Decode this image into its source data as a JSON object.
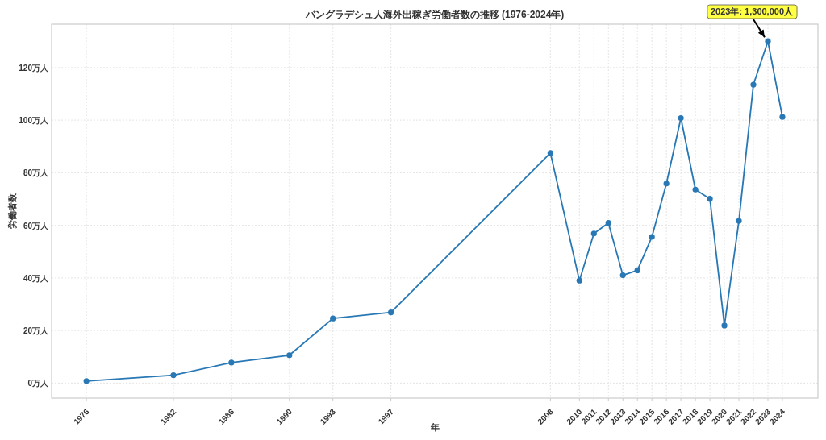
{
  "chart_data": {
    "type": "line",
    "title": "バングラデシュ人海外出稼ぎ労働者数の推移 (1976-2024年)",
    "xlabel": "年",
    "ylabel": "労働者数",
    "x": [
      1976,
      1982,
      1986,
      1990,
      1993,
      1997,
      2008,
      2010,
      2011,
      2012,
      2013,
      2014,
      2015,
      2016,
      2017,
      2018,
      2019,
      2020,
      2021,
      2022,
      2023,
      2024
    ],
    "series": [
      {
        "color": "#2878b5",
        "values": [
          0.8,
          3.0,
          7.8,
          10.6,
          24.6,
          26.9,
          87.5,
          39.0,
          56.9,
          60.9,
          41.0,
          42.9,
          55.6,
          75.9,
          100.8,
          73.6,
          70.1,
          21.9,
          61.7,
          113.5,
          130.0,
          101.2
        ]
      }
    ],
    "xlim": [
      1973.6,
      2026.45
    ],
    "ylim": [
      -5.7,
      136.5
    ],
    "xticks": [
      1976,
      1982,
      1986,
      1990,
      1993,
      1997,
      2008,
      2010,
      2011,
      2012,
      2013,
      2014,
      2015,
      2016,
      2017,
      2018,
      2019,
      2020,
      2021,
      2022,
      2023,
      2024
    ],
    "yticks": [
      {
        "value": 0,
        "label": "0万人"
      },
      {
        "value": 20,
        "label": "20万人"
      },
      {
        "value": 40,
        "label": "40万人"
      },
      {
        "value": 60,
        "label": "60万人"
      },
      {
        "value": 80,
        "label": "80万人"
      },
      {
        "value": 100,
        "label": "100万人"
      },
      {
        "value": 120,
        "label": "120万人"
      }
    ],
    "grid": true,
    "marker": "circle",
    "line_style": "solid",
    "annotations": [
      {
        "text": "2023年: 1,300,000人",
        "x": 2023,
        "y": 130.0
      }
    ]
  }
}
